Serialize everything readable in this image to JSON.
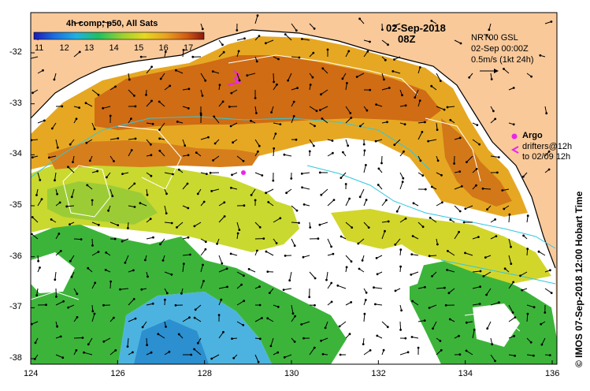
{
  "colorbar": {
    "title": "4h comp, p50, All Sats",
    "ticks": [
      "11",
      "12",
      "13",
      "14",
      "15",
      "16",
      "17"
    ]
  },
  "date": "02-Sep-2018",
  "time": "08Z",
  "model": {
    "name": "NRT00 GSL",
    "time": "02-Sep 00:00Z",
    "scale_label": "0.5m/s (1kt 24h)"
  },
  "legend": {
    "argo_label": "Argo",
    "drifters_label": "drifters@12h",
    "drifters_to": "to 02/09 12h"
  },
  "credit": "IMOS 07-Sep-2018 12:00 Hobart Time",
  "copyright_symbol": "©",
  "axes": {
    "x_ticks": [
      "124",
      "126",
      "128",
      "130",
      "132",
      "134",
      "136"
    ],
    "y_ticks": [
      "-32",
      "-33",
      "-34",
      "-35",
      "-36",
      "-37",
      "-38"
    ]
  },
  "colors": {
    "land": "#f9c99a",
    "warm": "#cc6a12",
    "mid": "#e8a520",
    "yellow": "#d9d92a",
    "green": "#33b03a",
    "blue": "#3aaedc",
    "contour": "#30c8e0",
    "argo": "#ee22ee"
  }
}
